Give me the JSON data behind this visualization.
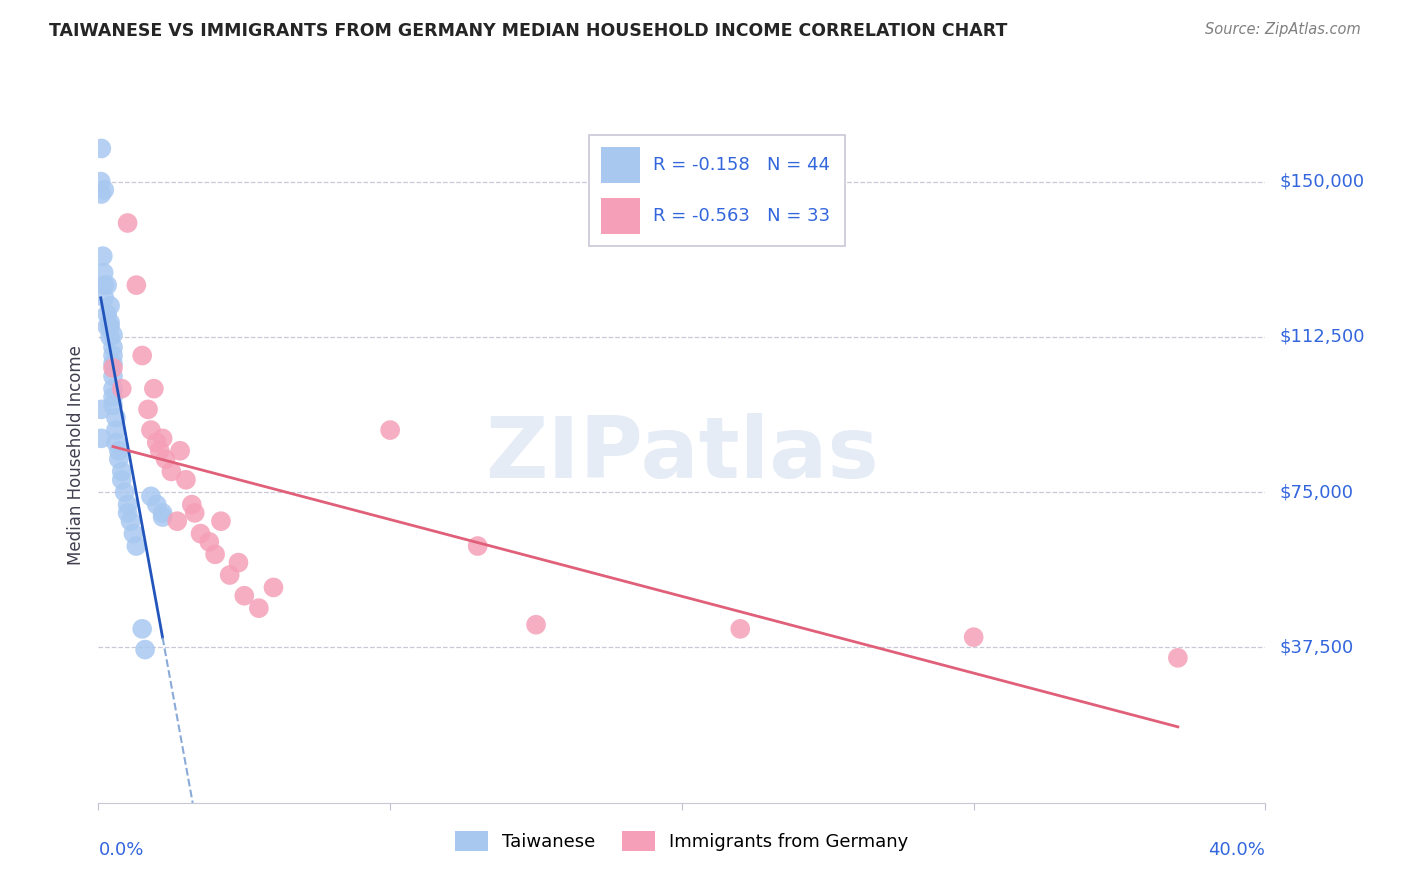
{
  "title": "TAIWANESE VS IMMIGRANTS FROM GERMANY MEDIAN HOUSEHOLD INCOME CORRELATION CHART",
  "source": "Source: ZipAtlas.com",
  "ylabel": "Median Household Income",
  "yticks": [
    37500,
    75000,
    112500,
    150000
  ],
  "ytick_labels": [
    "$37,500",
    "$75,000",
    "$112,500",
    "$150,000"
  ],
  "xlim": [
    0.0,
    0.4
  ],
  "ylim": [
    0,
    168000
  ],
  "watermark_text": "ZIPatlas",
  "taiwanese_R": "-0.158",
  "taiwanese_N": "44",
  "german_R": "-0.563",
  "german_N": "33",
  "taiwanese_color": "#a8c8f0",
  "german_color": "#f5a0b8",
  "trendline_blue_solid": "#2255bb",
  "trendline_blue_dash": "#8aaad8",
  "trendline_pink": "#e0607a",
  "tw_x": [
    0.0008,
    0.0015,
    0.0018,
    0.002,
    0.002,
    0.002,
    0.003,
    0.003,
    0.003,
    0.004,
    0.004,
    0.004,
    0.004,
    0.005,
    0.005,
    0.005,
    0.005,
    0.005,
    0.005,
    0.005,
    0.005,
    0.006,
    0.006,
    0.006,
    0.007,
    0.007,
    0.008,
    0.008,
    0.009,
    0.01,
    0.01,
    0.011,
    0.012,
    0.013,
    0.015,
    0.016,
    0.018,
    0.02,
    0.022,
    0.022,
    0.001,
    0.001,
    0.001,
    0.001
  ],
  "tw_y": [
    150000,
    132000,
    128000,
    148000,
    125000,
    122000,
    125000,
    118000,
    115000,
    116000,
    115000,
    112500,
    120000,
    113000,
    110000,
    108000,
    106000,
    103000,
    100000,
    98000,
    96000,
    93000,
    90000,
    87000,
    85000,
    83000,
    80000,
    78000,
    75000,
    72000,
    70000,
    68000,
    65000,
    62000,
    42000,
    37000,
    74000,
    72000,
    70000,
    69000,
    147000,
    95000,
    88000,
    158000
  ],
  "ge_x": [
    0.005,
    0.008,
    0.01,
    0.013,
    0.015,
    0.017,
    0.018,
    0.019,
    0.02,
    0.021,
    0.022,
    0.023,
    0.025,
    0.027,
    0.028,
    0.03,
    0.032,
    0.033,
    0.035,
    0.038,
    0.04,
    0.042,
    0.045,
    0.048,
    0.05,
    0.055,
    0.06,
    0.1,
    0.13,
    0.15,
    0.22,
    0.3,
    0.37
  ],
  "ge_y": [
    105000,
    100000,
    140000,
    125000,
    108000,
    95000,
    90000,
    100000,
    87000,
    85000,
    88000,
    83000,
    80000,
    68000,
    85000,
    78000,
    72000,
    70000,
    65000,
    63000,
    60000,
    68000,
    55000,
    58000,
    50000,
    47000,
    52000,
    90000,
    62000,
    43000,
    42000,
    40000,
    35000
  ]
}
